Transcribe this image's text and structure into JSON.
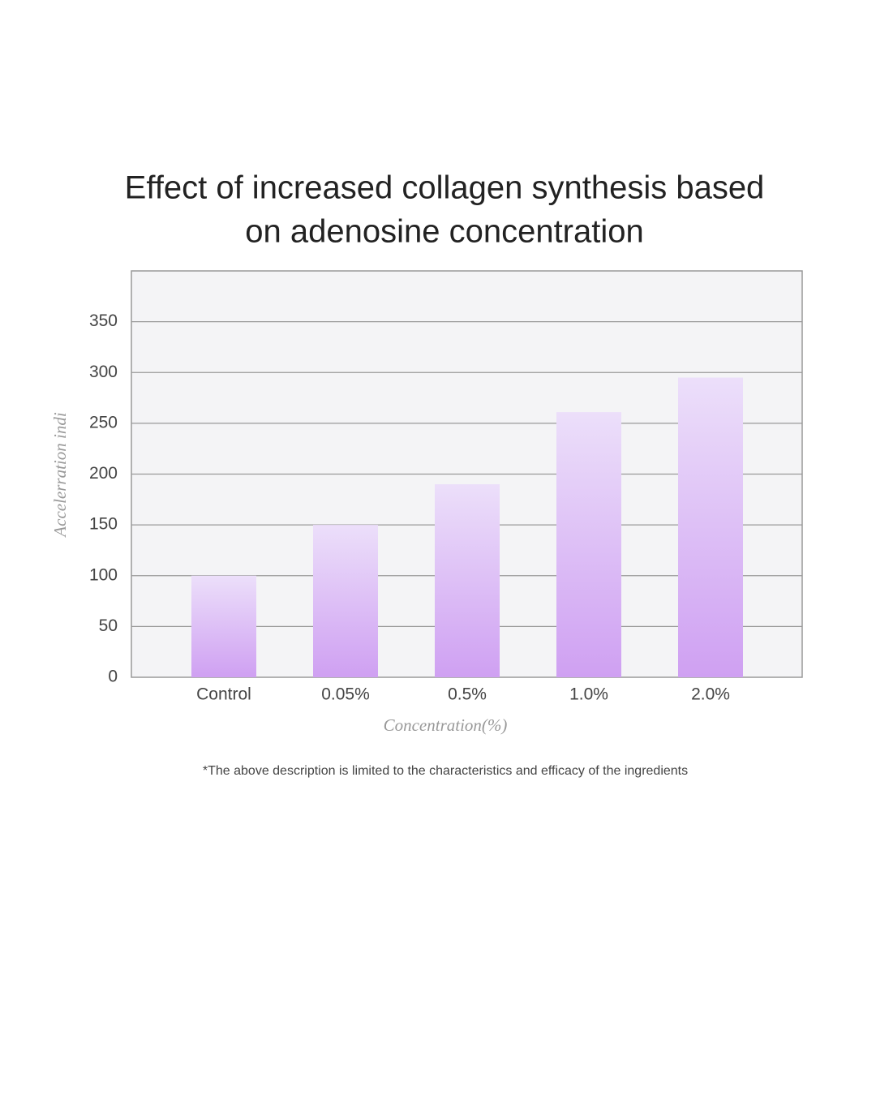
{
  "chart_data": {
    "type": "bar",
    "title": [
      "Effect of increased collagen synthesis based",
      "on adenosine concentration"
    ],
    "y_label": "Accelerration indi",
    "x_label": "Concentration(%)",
    "footnote": "*The above description is limited to the characteristics and efficacy of the ingredients",
    "categories": [
      "Control",
      "0.05%",
      "0.5%",
      "1.0%",
      "2.0%"
    ],
    "values": [
      100,
      150,
      190,
      261,
      295
    ],
    "color": [
      "#ecdffa",
      "#cfa0f2"
    ],
    "ylim": [
      0,
      400
    ],
    "yticks": [
      0,
      50,
      100,
      150,
      200,
      250,
      300,
      350
    ],
    "grid": true
  }
}
